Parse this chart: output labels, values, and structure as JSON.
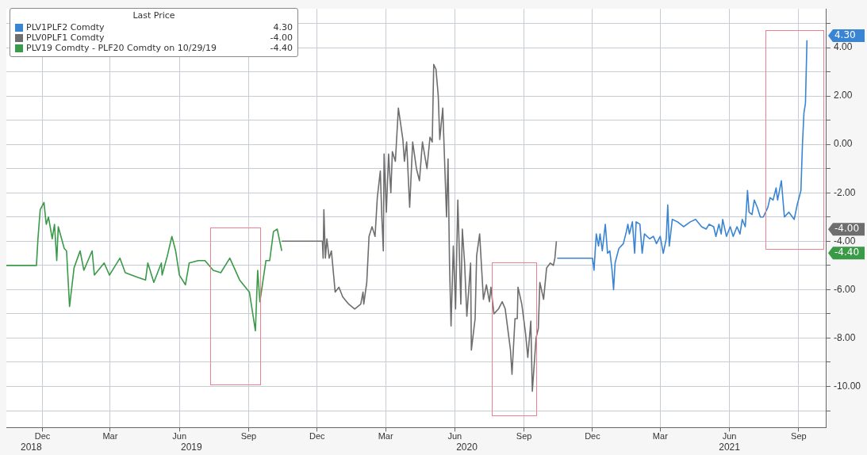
{
  "chart_data": {
    "type": "line",
    "legend_title": "Last Price",
    "legend": "top left",
    "grid": true,
    "line_style": "solid",
    "marker": "none",
    "xlim": [
      "2018-10-28",
      "2021-10-22"
    ],
    "xticks": [
      {
        "value": "2018-12-15",
        "label": "Dec"
      },
      {
        "value": "2019-03-15",
        "label": "Mar"
      },
      {
        "value": "2019-06-15",
        "label": "Jun"
      },
      {
        "value": "2019-09-15",
        "label": "Sep"
      },
      {
        "value": "2019-12-15",
        "label": "Dec"
      },
      {
        "value": "2020-03-15",
        "label": "Mar"
      },
      {
        "value": "2020-06-15",
        "label": "Jun"
      },
      {
        "value": "2020-09-15",
        "label": "Sep"
      },
      {
        "value": "2020-12-15",
        "label": "Dec"
      },
      {
        "value": "2021-03-15",
        "label": "Mar"
      },
      {
        "value": "2021-06-15",
        "label": "Jun"
      },
      {
        "value": "2021-09-15",
        "label": "Sep"
      }
    ],
    "x2lim": [
      "2018-10-28",
      "2021-10-22"
    ],
    "x2ticks": [
      {
        "value": "2018-11-30",
        "label": "2018"
      },
      {
        "value": "2019-07-01",
        "label": "2019"
      },
      {
        "value": "2020-07-01",
        "label": "2020"
      },
      {
        "value": "2021-06-15",
        "label": "2021"
      }
    ],
    "ylim": [
      -11.7,
      5.6
    ],
    "yticks": [
      {
        "value": -11,
        "label": null
      },
      {
        "value": -10,
        "label": "-10.00"
      },
      {
        "value": -9,
        "label": null
      },
      {
        "value": -8,
        "label": "-8.00"
      },
      {
        "value": -7,
        "label": null
      },
      {
        "value": -6,
        "label": "-6.00"
      },
      {
        "value": -5,
        "label": null
      },
      {
        "value": -4,
        "label": "-4.00"
      },
      {
        "value": -3,
        "label": null
      },
      {
        "value": -2,
        "label": "-2.00"
      },
      {
        "value": -1,
        "label": null
      },
      {
        "value": 0,
        "label": "0.00"
      },
      {
        "value": 1,
        "label": null
      },
      {
        "value": 2,
        "label": "2.00"
      },
      {
        "value": 3,
        "label": null
      },
      {
        "value": 4,
        "label": "4.00"
      },
      {
        "value": 5,
        "label": null
      }
    ],
    "annotations": [
      "4.30",
      "-4.00",
      "-4.40"
    ],
    "series": [
      {
        "name": "PLV1PLF2 Comdty",
        "color": "#3a84d4",
        "x": [
          "2020-10-29",
          "2020-12-15",
          "2020-12-17",
          "2020-12-20",
          "2020-12-23",
          "2020-12-25",
          "2020-12-28",
          "2021-01-01",
          "2021-01-04",
          "2021-01-07",
          "2021-01-10",
          "2021-01-12",
          "2021-01-14",
          "2021-01-19",
          "2021-01-25",
          "2021-01-29",
          "2021-01-31",
          "2021-02-02",
          "2021-02-06",
          "2021-02-09",
          "2021-02-11",
          "2021-02-16",
          "2021-02-19",
          "2021-02-22",
          "2021-03-01",
          "2021-03-06",
          "2021-03-10",
          "2021-03-15",
          "2021-03-19",
          "2021-03-23",
          "2021-03-25",
          "2021-03-27",
          "2021-03-31",
          "2021-04-07",
          "2021-04-15",
          "2021-04-24",
          "2021-05-01",
          "2021-05-09",
          "2021-05-15",
          "2021-05-19",
          "2021-05-25",
          "2021-05-28",
          "2021-06-01",
          "2021-06-04",
          "2021-06-06",
          "2021-06-11",
          "2021-06-16",
          "2021-06-20",
          "2021-06-25",
          "2021-06-29",
          "2021-07-02",
          "2021-07-06",
          "2021-07-09",
          "2021-07-11",
          "2021-07-15",
          "2021-07-18",
          "2021-07-22",
          "2021-07-26",
          "2021-07-30",
          "2021-08-05",
          "2021-08-08",
          "2021-08-12",
          "2021-08-16",
          "2021-08-18",
          "2021-08-23",
          "2021-08-27",
          "2021-09-02",
          "2021-09-09",
          "2021-09-13",
          "2021-09-18",
          "2021-09-20",
          "2021-09-22",
          "2021-09-24",
          "2021-09-26"
        ],
        "values": [
          -4.7,
          -4.7,
          -5.2,
          -3.7,
          -4.2,
          -3.7,
          -4.4,
          -3.3,
          -4.5,
          -4.4,
          -5.2,
          -6.0,
          -4.9,
          -4.3,
          -4.1,
          -3.6,
          -3.3,
          -3.7,
          -3.2,
          -4.5,
          -3.2,
          -3.3,
          -4.5,
          -3.7,
          -3.9,
          -3.8,
          -4.1,
          -3.8,
          -4.5,
          -3.9,
          -2.5,
          -4.2,
          -3.1,
          -3.2,
          -3.4,
          -3.2,
          -3.1,
          -3.4,
          -3.5,
          -3.3,
          -3.4,
          -3.8,
          -3.3,
          -3.7,
          -3.1,
          -3.8,
          -3.4,
          -3.8,
          -3.4,
          -3.7,
          -3.1,
          -3.4,
          -1.9,
          -2.8,
          -2.9,
          -2.3,
          -2.6,
          -3.0,
          -3.0,
          -2.6,
          -2.2,
          -2.3,
          -1.8,
          -2.3,
          -1.5,
          -3.0,
          -2.8,
          -3.1,
          -2.5,
          -1.9,
          0.0,
          1.3,
          1.7,
          4.3
        ]
      },
      {
        "name": "PLV0PLF1 Comdty",
        "color": "#6e6e6e",
        "x": [
          "2019-10-29",
          "2019-12-22",
          "2019-12-23",
          "2019-12-24",
          "2019-12-26",
          "2019-12-28",
          "2019-12-31",
          "2020-01-03",
          "2020-01-08",
          "2020-01-13",
          "2020-01-18",
          "2020-01-26",
          "2020-02-03",
          "2020-02-11",
          "2020-02-14",
          "2020-02-15",
          "2020-02-19",
          "2020-02-22",
          "2020-02-26",
          "2020-03-01",
          "2020-03-04",
          "2020-03-08",
          "2020-03-10",
          "2020-03-12",
          "2020-03-13",
          "2020-03-16",
          "2020-03-19",
          "2020-03-22",
          "2020-03-24",
          "2020-03-28",
          "2020-04-01",
          "2020-04-07",
          "2020-04-09",
          "2020-04-12",
          "2020-04-16",
          "2020-04-20",
          "2020-04-25",
          "2020-04-29",
          "2020-05-03",
          "2020-05-09",
          "2020-05-13",
          "2020-05-16",
          "2020-05-18",
          "2020-05-21",
          "2020-05-24",
          "2020-05-26",
          "2020-05-30",
          "2020-06-02",
          "2020-06-04",
          "2020-06-06",
          "2020-06-08",
          "2020-06-10",
          "2020-06-13",
          "2020-06-16",
          "2020-06-19",
          "2020-06-23",
          "2020-06-25",
          "2020-06-28",
          "2020-07-01",
          "2020-07-06",
          "2020-07-07",
          "2020-07-12",
          "2020-07-14",
          "2020-07-18",
          "2020-07-23",
          "2020-07-27",
          "2020-07-31",
          "2020-08-02",
          "2020-08-06",
          "2020-08-12",
          "2020-08-17",
          "2020-08-21",
          "2020-08-28",
          "2020-08-30",
          "2020-09-03",
          "2020-09-06",
          "2020-09-07",
          "2020-09-12",
          "2020-09-17",
          "2020-09-20",
          "2020-09-24",
          "2020-09-26",
          "2020-10-01",
          "2020-10-04",
          "2020-10-06",
          "2020-10-11",
          "2020-10-15",
          "2020-10-20",
          "2020-10-24",
          "2020-10-26",
          "2020-10-28"
        ],
        "values": [
          -4.0,
          -4.0,
          -4.7,
          -2.7,
          -4.7,
          -3.9,
          -4.7,
          -4.4,
          -6.1,
          -5.9,
          -6.3,
          -6.6,
          -6.8,
          -6.6,
          -6.1,
          -6.6,
          -5.7,
          -3.8,
          -3.4,
          -3.8,
          -2.2,
          -1.1,
          -3.0,
          -4.4,
          -0.4,
          -2.8,
          -0.4,
          -2.0,
          -0.3,
          -0.7,
          1.5,
          0.2,
          -0.7,
          0.1,
          -2.6,
          0.1,
          -1.0,
          -1.5,
          0.1,
          -1.0,
          0.3,
          0.1,
          3.3,
          3.1,
          2.0,
          0.2,
          1.5,
          -1.2,
          -3.0,
          -0.6,
          -5.0,
          -7.5,
          -4.2,
          -6.8,
          -2.3,
          -6.6,
          -3.5,
          -4.9,
          -7.1,
          -4.9,
          -8.5,
          -7.2,
          -4.6,
          -3.7,
          -6.4,
          -5.8,
          -6.5,
          -5.9,
          -7.0,
          -6.8,
          -6.5,
          -6.8,
          -8.5,
          -9.5,
          -7.2,
          -7.2,
          -5.9,
          -6.6,
          -7.8,
          -8.8,
          -7.3,
          -10.2,
          -8.0,
          -7.6,
          -5.7,
          -6.4,
          -5.1,
          -4.9,
          -5.0,
          -4.7,
          -4.0
        ]
      },
      {
        "name": "PLV19 Comdty - PLF20 Comdty on 10/29/19",
        "color": "#3a9a48",
        "x": [
          "2018-10-28",
          "2018-12-07",
          "2018-12-09",
          "2018-12-12",
          "2018-12-17",
          "2018-12-20",
          "2018-12-23",
          "2018-12-28",
          "2018-12-31",
          "2019-01-03",
          "2019-01-05",
          "2019-01-13",
          "2019-01-16",
          "2019-01-20",
          "2019-01-23",
          "2019-01-26",
          "2019-02-03",
          "2019-02-08",
          "2019-02-19",
          "2019-02-22",
          "2019-03-07",
          "2019-03-14",
          "2019-03-28",
          "2019-04-04",
          "2019-04-21",
          "2019-05-01",
          "2019-05-04",
          "2019-05-12",
          "2019-05-22",
          "2019-05-23",
          "2019-05-30",
          "2019-06-05",
          "2019-06-10",
          "2019-06-15",
          "2019-06-23",
          "2019-06-28",
          "2019-07-10",
          "2019-07-19",
          "2019-07-30",
          "2019-08-09",
          "2019-08-21",
          "2019-09-03",
          "2019-09-16",
          "2019-09-24",
          "2019-09-27",
          "2019-09-30",
          "2019-10-08",
          "2019-10-13",
          "2019-10-18",
          "2019-10-23",
          "2019-10-29"
        ],
        "values": [
          -5.0,
          -5.0,
          -3.9,
          -2.7,
          -2.4,
          -3.3,
          -3.0,
          -3.9,
          -3.3,
          -4.8,
          -3.4,
          -4.3,
          -4.4,
          -6.7,
          -5.9,
          -5.1,
          -4.4,
          -5.2,
          -4.4,
          -5.4,
          -4.9,
          -5.4,
          -4.7,
          -5.3,
          -5.5,
          -5.6,
          -4.9,
          -5.7,
          -4.9,
          -5.4,
          -4.6,
          -3.8,
          -4.4,
          -5.4,
          -5.8,
          -4.9,
          -4.8,
          -4.8,
          -5.2,
          -5.3,
          -4.7,
          -5.6,
          -6.1,
          -7.7,
          -5.2,
          -6.5,
          -4.8,
          -4.8,
          -3.6,
          -3.5,
          -4.4
        ]
      }
    ]
  }
}
